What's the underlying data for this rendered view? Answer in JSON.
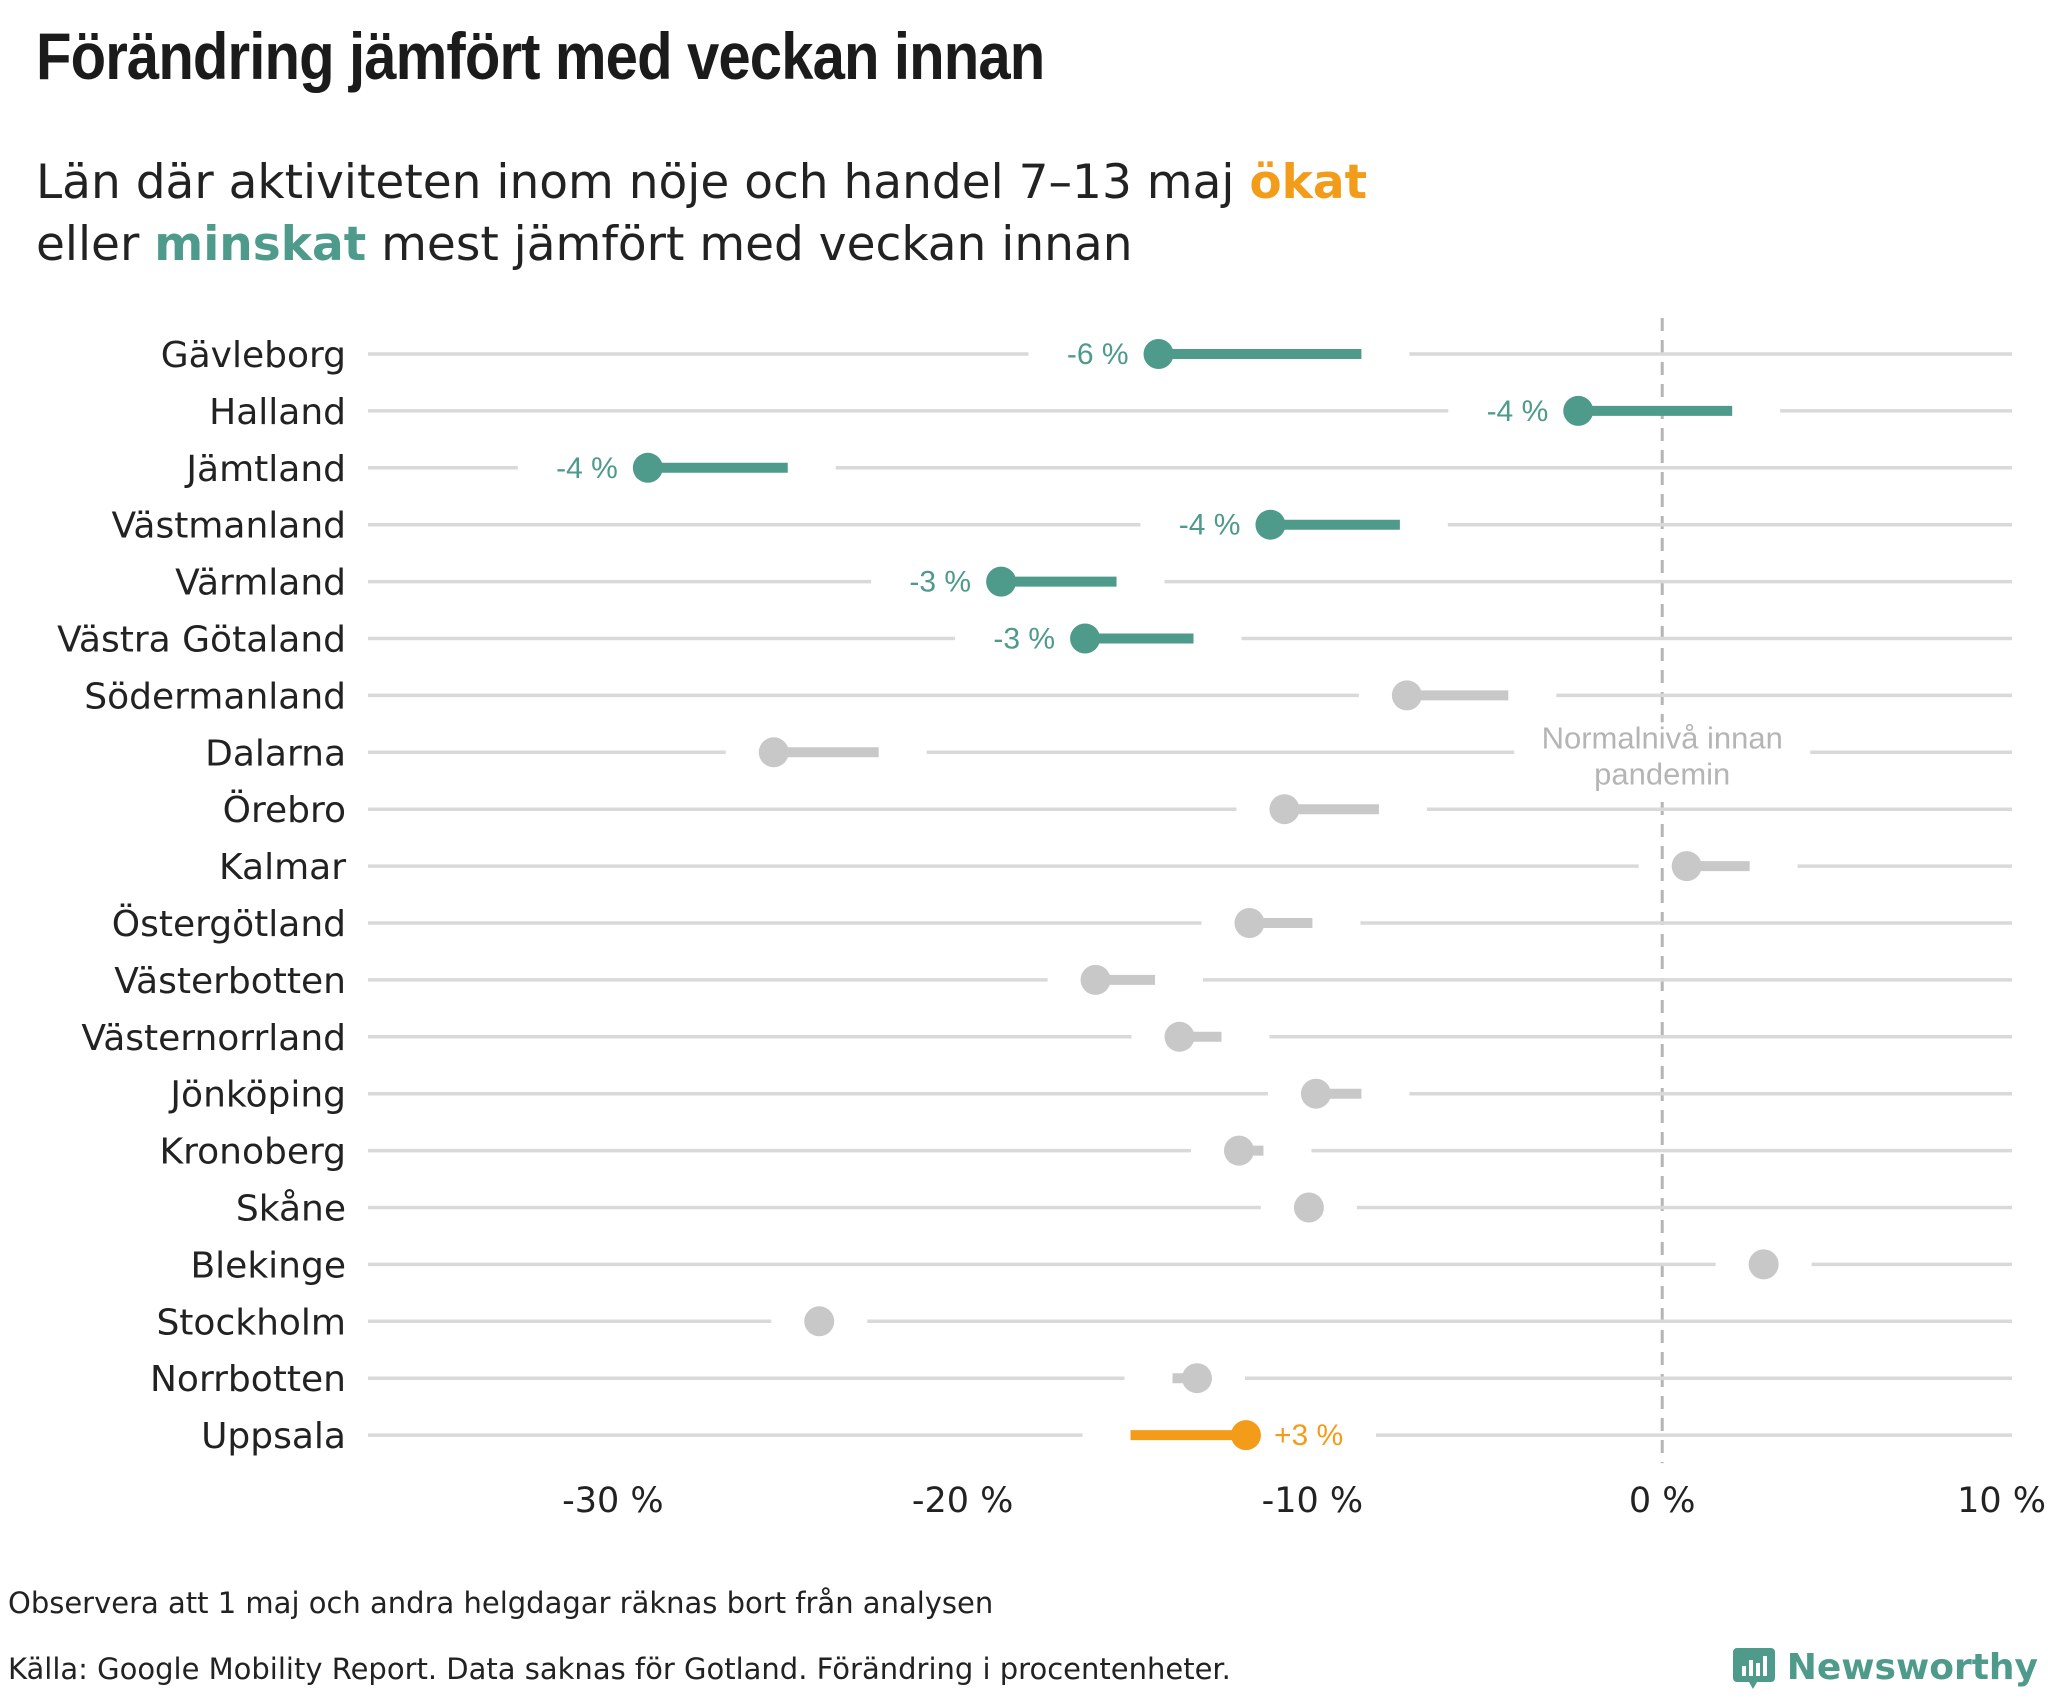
{
  "header": {
    "title": "Förändring jämfört med veckan innan",
    "subtitle_line1_prefix": "Län där aktiviteten inom nöje och handel 7–13 maj ",
    "subtitle_up_word": "ökat",
    "subtitle_line2_prefix": "eller ",
    "subtitle_down_word": "minskat",
    "subtitle_line2_suffix": " mest jämfört med veckan innan"
  },
  "footer": {
    "note": "Observera att 1 maj och andra helgdagar räknas bort från analysen",
    "source": "Källa: Google Mobility Report. Data saknas för Gotland. Förändring i procentenheter.",
    "brand": "Newsworthy"
  },
  "colors": {
    "decrease": "#4e9a8b",
    "increase": "#f39c19",
    "neutral": "#c8c8c8",
    "gridline": "#d9d9d9",
    "reference": "#b5b5b5"
  },
  "chart_data": {
    "type": "dumbbell",
    "x_unit": "%",
    "xlim": [
      -37,
      10
    ],
    "xticks": [
      -30,
      -20,
      -10,
      0,
      10
    ],
    "xtick_labels": [
      "-30 %",
      "-20 %",
      "-10 %",
      "0 %",
      "10 %"
    ],
    "reference_line": {
      "x": 0,
      "label": [
        "Normalnivå innan",
        "pandemin"
      ]
    },
    "rows": [
      {
        "region": "Gävleborg",
        "previous": -8.6,
        "current": -14.4,
        "label": "-6 %",
        "group": "decrease"
      },
      {
        "region": "Halland",
        "previous": 2.0,
        "current": -2.4,
        "label": "-4 %",
        "group": "decrease"
      },
      {
        "region": "Jämtland",
        "previous": -25.0,
        "current": -29.0,
        "label": "-4 %",
        "group": "decrease"
      },
      {
        "region": "Västmanland",
        "previous": -7.5,
        "current": -11.2,
        "label": "-4 %",
        "group": "decrease"
      },
      {
        "region": "Värmland",
        "previous": -15.6,
        "current": -18.9,
        "label": "-3 %",
        "group": "decrease"
      },
      {
        "region": "Västra Götaland",
        "previous": -13.4,
        "current": -16.5,
        "label": "-3 %",
        "group": "decrease"
      },
      {
        "region": "Södermanland",
        "previous": -4.4,
        "current": -7.3,
        "label": "",
        "group": "neutral"
      },
      {
        "region": "Dalarna",
        "previous": -22.4,
        "current": -25.4,
        "label": "",
        "group": "neutral"
      },
      {
        "region": "Örebro",
        "previous": -8.1,
        "current": -10.8,
        "label": "",
        "group": "neutral"
      },
      {
        "region": "Kalmar",
        "previous": 2.5,
        "current": 0.7,
        "label": "",
        "group": "neutral"
      },
      {
        "region": "Östergötland",
        "previous": -10.0,
        "current": -11.8,
        "label": "",
        "group": "neutral"
      },
      {
        "region": "Västerbotten",
        "previous": -14.5,
        "current": -16.2,
        "label": "",
        "group": "neutral"
      },
      {
        "region": "Västernorrland",
        "previous": -12.6,
        "current": -13.8,
        "label": "",
        "group": "neutral"
      },
      {
        "region": "Jönköping",
        "previous": -8.6,
        "current": -9.9,
        "label": "",
        "group": "neutral"
      },
      {
        "region": "Kronoberg",
        "previous": -11.4,
        "current": -12.1,
        "label": "",
        "group": "neutral"
      },
      {
        "region": "Skåne",
        "previous": -10.1,
        "current": -10.1,
        "label": "",
        "group": "neutral"
      },
      {
        "region": "Blekinge",
        "previous": 2.9,
        "current": 2.9,
        "label": "",
        "group": "neutral"
      },
      {
        "region": "Stockholm",
        "previous": -24.1,
        "current": -24.1,
        "label": "",
        "group": "neutral"
      },
      {
        "region": "Norrbotten",
        "previous": -14.0,
        "current": -13.3,
        "label": "",
        "group": "neutral"
      },
      {
        "region": "Uppsala",
        "previous": -15.2,
        "current": -11.9,
        "label": "+3 %",
        "group": "increase"
      }
    ]
  }
}
